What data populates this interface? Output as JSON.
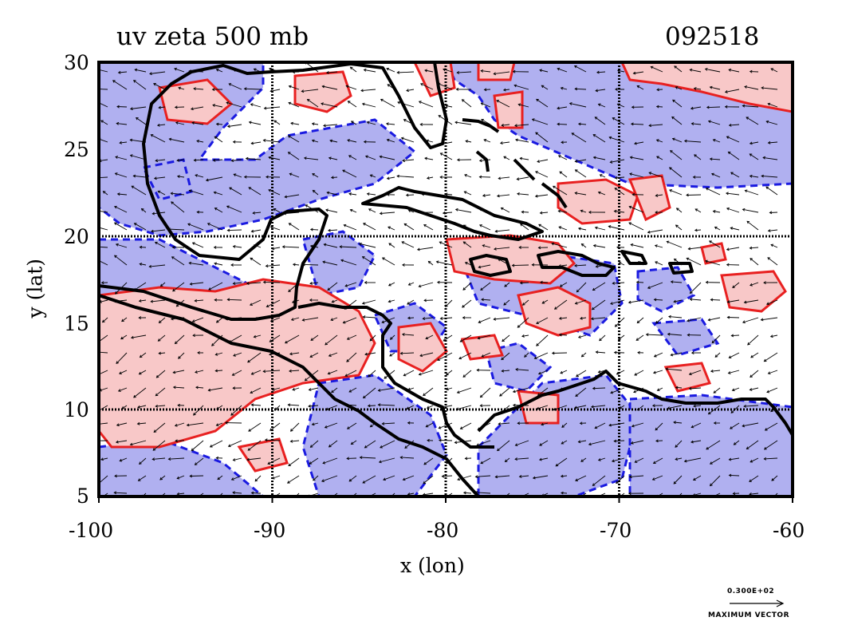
{
  "title_left": "uv zeta 500 mb",
  "title_right": "092518",
  "x_axis_label": "x (lon)",
  "y_axis_label": "y (lat)",
  "x_ticks": [
    "-100",
    "-90",
    "-80",
    "-70",
    "-60"
  ],
  "y_ticks": [
    "30",
    "25",
    "20",
    "15",
    "10",
    "5"
  ],
  "vector_legend": {
    "value": "0.300E+02",
    "label": "MAXIMUM VECTOR"
  },
  "colors": {
    "positive_fill": "#f8c8c8",
    "positive_contour": "#e82020",
    "negative_fill": "#b0b0f0",
    "negative_contour": "#1a1ae0",
    "coastline": "#000000",
    "grid": "#000000"
  },
  "chart_data": {
    "type": "heatmap",
    "title": "uv zeta 500 mb",
    "subtitle": "092518",
    "xlabel": "x (lon)",
    "ylabel": "y (lat)",
    "xlim": [
      -100,
      -60
    ],
    "ylim": [
      5,
      30
    ],
    "x_ticks": [
      -100,
      -90,
      -80,
      -70,
      -60
    ],
    "y_ticks": [
      5,
      10,
      15,
      20,
      25,
      30
    ],
    "grid": true,
    "fields": [
      "relative vorticity (zeta) contours",
      "wind vectors (u,v)"
    ]
  }
}
